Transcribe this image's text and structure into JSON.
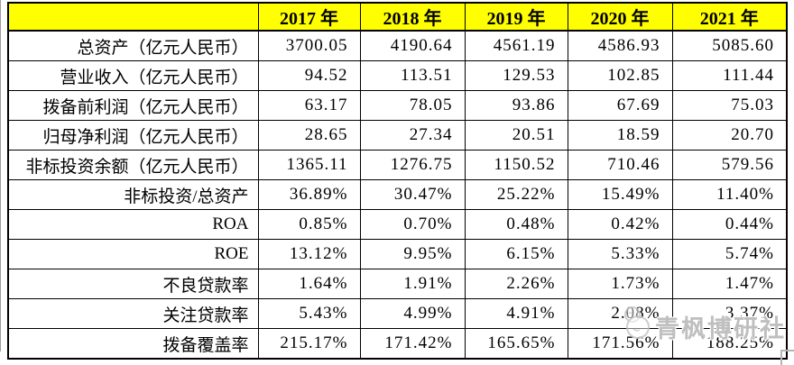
{
  "page": {
    "background": "#ffffff"
  },
  "table": {
    "header_bg": "#ffff00",
    "border_color": "#000000",
    "columns": [
      "",
      "2017 年",
      "2018 年",
      "2019 年",
      "2020 年",
      "2021 年"
    ],
    "rows": [
      {
        "label": "总资产（亿元人民币）",
        "values": [
          "3700.05",
          "4190.64",
          "4561.19",
          "4586.93",
          "5085.60"
        ]
      },
      {
        "label": "营业收入（亿元人民币）",
        "values": [
          "94.52",
          "113.51",
          "129.53",
          "102.85",
          "111.44"
        ]
      },
      {
        "label": "拨备前利润（亿元人民币）",
        "values": [
          "63.17",
          "78.05",
          "93.86",
          "67.69",
          "75.03"
        ]
      },
      {
        "label": "归母净利润（亿元人民币）",
        "values": [
          "28.65",
          "27.34",
          "20.51",
          "18.59",
          "20.70"
        ]
      },
      {
        "label": "非标投资余额（亿元人民币）",
        "values": [
          "1365.11",
          "1276.75",
          "1150.52",
          "710.46",
          "579.56"
        ]
      },
      {
        "label": "非标投资/总资产",
        "values": [
          "36.89%",
          "30.47%",
          "25.22%",
          "15.49%",
          "11.40%"
        ]
      },
      {
        "label": "ROA",
        "values": [
          "0.85%",
          "0.70%",
          "0.48%",
          "0.42%",
          "0.44%"
        ]
      },
      {
        "label": "ROE",
        "values": [
          "13.12%",
          "9.95%",
          "6.15%",
          "5.33%",
          "5.74%"
        ]
      },
      {
        "label": "不良贷款率",
        "values": [
          "1.64%",
          "1.91%",
          "2.26%",
          "1.73%",
          "1.47%"
        ]
      },
      {
        "label": "关注贷款率",
        "values": [
          "5.43%",
          "4.99%",
          "4.91%",
          "2.08%",
          "3.37%"
        ]
      },
      {
        "label": "拨备覆盖率",
        "values": [
          "215.17%",
          "171.42%",
          "165.65%",
          "171.56%",
          "188.25%"
        ]
      }
    ]
  },
  "watermark": {
    "icon": "overlapping-circles-logo",
    "text": "青枫博研社",
    "color": "#bfbfbf"
  },
  "chart_data": {
    "type": "table",
    "title": "银行历年主要财务指标",
    "categories": [
      "2017",
      "2018",
      "2019",
      "2020",
      "2021"
    ],
    "series": [
      {
        "name": "总资产",
        "unit": "亿元人民币",
        "values": [
          3700.05,
          4190.64,
          4561.19,
          4586.93,
          5085.6
        ]
      },
      {
        "name": "营业收入",
        "unit": "亿元人民币",
        "values": [
          94.52,
          113.51,
          129.53,
          102.85,
          111.44
        ]
      },
      {
        "name": "拨备前利润",
        "unit": "亿元人民币",
        "values": [
          63.17,
          78.05,
          93.86,
          67.69,
          75.03
        ]
      },
      {
        "name": "归母净利润",
        "unit": "亿元人民币",
        "values": [
          28.65,
          27.34,
          20.51,
          18.59,
          20.7
        ]
      },
      {
        "name": "非标投资余额",
        "unit": "亿元人民币",
        "values": [
          1365.11,
          1276.75,
          1150.52,
          710.46,
          579.56
        ]
      },
      {
        "name": "非标投资/总资产",
        "unit": "%",
        "values": [
          36.89,
          30.47,
          25.22,
          15.49,
          11.4
        ]
      },
      {
        "name": "ROA",
        "unit": "%",
        "values": [
          0.85,
          0.7,
          0.48,
          0.42,
          0.44
        ]
      },
      {
        "name": "ROE",
        "unit": "%",
        "values": [
          13.12,
          9.95,
          6.15,
          5.33,
          5.74
        ]
      },
      {
        "name": "不良贷款率",
        "unit": "%",
        "values": [
          1.64,
          1.91,
          2.26,
          1.73,
          1.47
        ]
      },
      {
        "name": "关注贷款率",
        "unit": "%",
        "values": [
          5.43,
          4.99,
          4.91,
          2.08,
          3.37
        ]
      },
      {
        "name": "拨备覆盖率",
        "unit": "%",
        "values": [
          215.17,
          171.42,
          165.65,
          171.56,
          188.25
        ]
      }
    ],
    "legend_position": "none",
    "grid": true
  }
}
